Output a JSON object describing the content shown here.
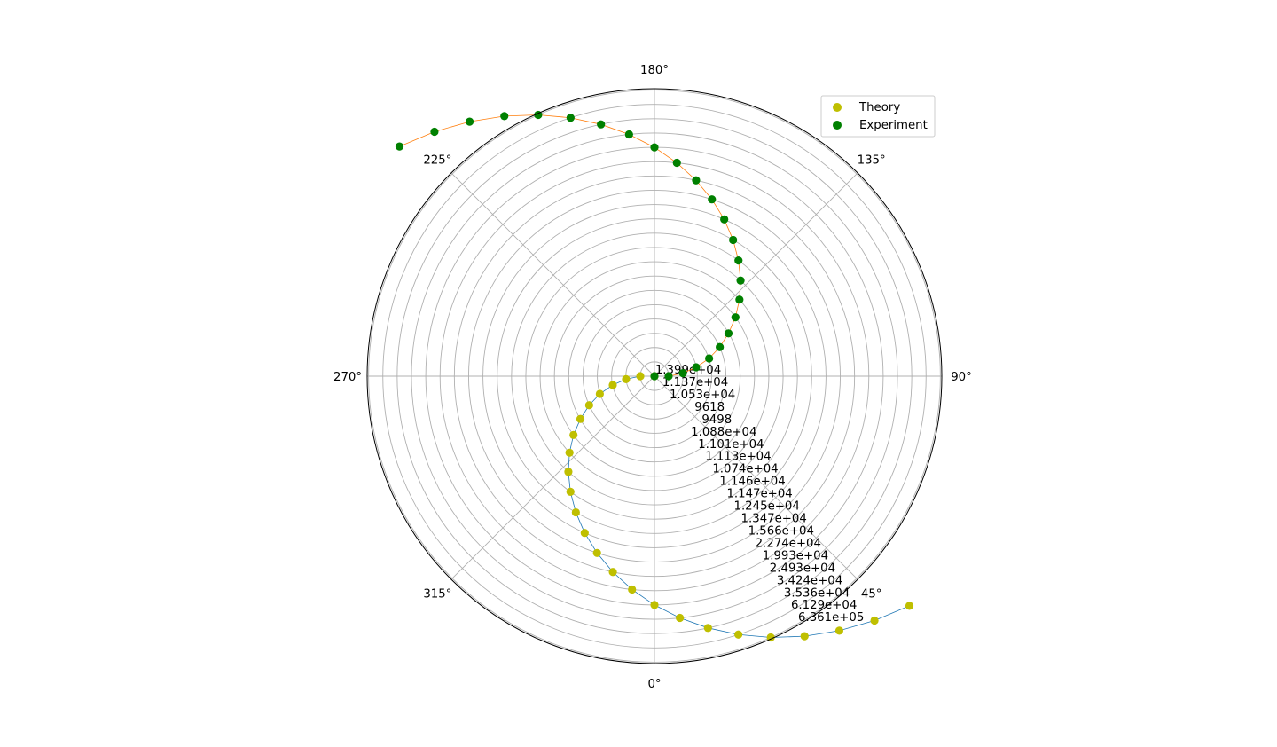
{
  "chart_data": {
    "type": "scatter",
    "projection": "polar",
    "theta_zero_location": "bottom",
    "theta_direction": "counterclockwise",
    "angle_ticks": [
      "0°",
      "45°",
      "90°",
      "135°",
      "180°",
      "225°",
      "270°",
      "315°"
    ],
    "radial_ticks": [
      "1.399e+04",
      "1.137e+04",
      "1.053e+04",
      "9618",
      "9498",
      "1.088e+04",
      "1.101e+04",
      "1.113e+04",
      "1.074e+04",
      "1.146e+04",
      "1.147e+04",
      "1.245e+04",
      "1.347e+04",
      "1.566e+04",
      "2.274e+04",
      "1.993e+04",
      "2.493e+04",
      "3.424e+04",
      "3.536e+04",
      "6.129e+04",
      "6.361e+05"
    ],
    "radial_label_angle_deg": 30,
    "r_max_rings": 20,
    "grid": true,
    "legend_position": "top-right",
    "series": [
      {
        "name": "Theory",
        "color": "#bfbf00",
        "line_color": "#1f77b4",
        "theta_deg": [
          0,
          270,
          276,
          282,
          288,
          294,
          300,
          306,
          312,
          318,
          324,
          330,
          336,
          342,
          348,
          354,
          360,
          366,
          372,
          378,
          384,
          390,
          396,
          402,
          408
        ],
        "r": [
          0,
          0.99,
          2.0,
          2.98,
          4.02,
          5.0,
          5.98,
          7.0,
          8.0,
          9.0,
          10.0,
          11.0,
          12.0,
          13.0,
          14.0,
          15.0,
          16.0,
          17.0,
          18.0,
          19.0,
          20.0,
          21.0,
          22.0,
          23.0,
          24.0
        ]
      },
      {
        "name": "Experiment",
        "color": "#008000",
        "line_color": "#ff7f0e",
        "theta_deg": [
          0,
          90,
          96,
          102,
          108,
          114,
          120,
          126,
          132,
          138,
          144,
          150,
          156,
          162,
          168,
          174,
          180,
          186,
          192,
          198,
          204,
          210,
          216,
          222,
          228
        ],
        "r": [
          0,
          0.99,
          2.0,
          2.98,
          4.02,
          5.0,
          5.98,
          7.0,
          8.0,
          9.0,
          10.0,
          11.0,
          12.0,
          13.0,
          14.0,
          15.0,
          16.0,
          17.0,
          18.0,
          19.0,
          20.0,
          21.0,
          22.0,
          23.0,
          24.0
        ]
      }
    ]
  }
}
